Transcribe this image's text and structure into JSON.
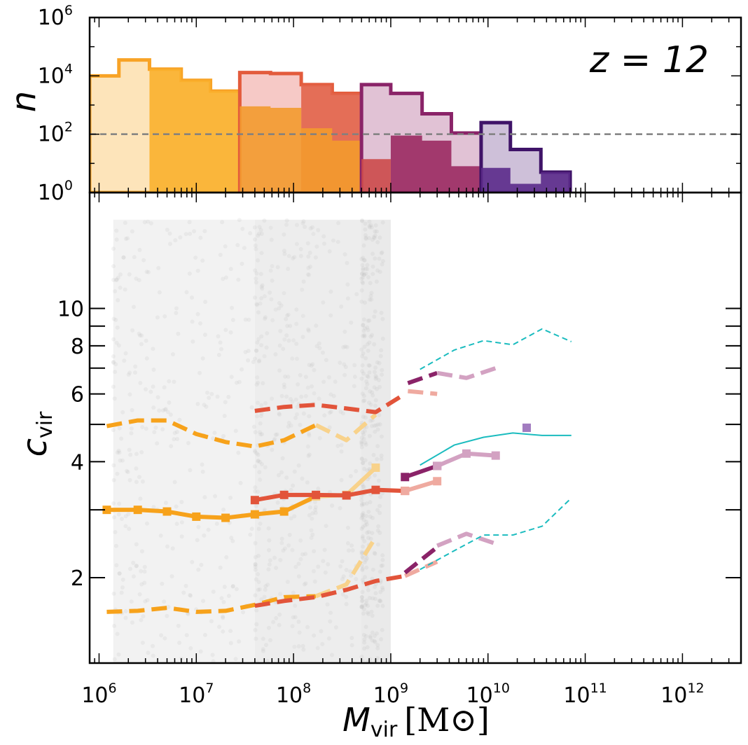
{
  "chart_data": [
    {
      "panel": "top",
      "type": "histogram",
      "annotation": "z = 12",
      "ylabel": "n",
      "yscale": "log",
      "ylim": [
        1,
        1000000
      ],
      "xscale": "log",
      "xlim": [
        800000,
        4000000000000
      ],
      "y_ticks": [
        {
          "value": 1,
          "base": "10",
          "exp": "0"
        },
        {
          "value": 100,
          "base": "10",
          "exp": "2"
        },
        {
          "value": 10000,
          "base": "10",
          "exp": "4"
        },
        {
          "value": 1000000,
          "base": "10",
          "exp": "6"
        }
      ],
      "reference_line": {
        "y": 100,
        "color": "#808080",
        "style": "dashed"
      },
      "series": [
        {
          "color": "#fde3b6",
          "style": "filled-light",
          "edges": [
            800000,
            1600000,
            3300000,
            7000000,
            14000000,
            28000000
          ],
          "values": [
            10000,
            35000,
            17000,
            7000,
            3000
          ]
        },
        {
          "color": "#f8a326",
          "style": "outline",
          "edges": [
            800000,
            1600000,
            3300000,
            7000000,
            14000000,
            28000000
          ],
          "values": [
            10000,
            35000,
            17000,
            7000,
            3000
          ]
        },
        {
          "color": "#fab02e",
          "style": "filled-solid",
          "edges": [
            3300000,
            7000000,
            14000000,
            28000000
          ],
          "values": [
            17000,
            7000,
            3000
          ]
        },
        {
          "color": "#f5c6c3",
          "style": "filled-light",
          "edges": [
            28000000,
            58000000,
            120000000,
            250000000,
            500000000
          ],
          "values": [
            13000,
            12000,
            5000,
            2500
          ]
        },
        {
          "color": "#e35b3c",
          "style": "outline",
          "edges": [
            28000000,
            58000000,
            120000000,
            250000000,
            500000000
          ],
          "values": [
            13000,
            12000,
            5000,
            2500
          ]
        },
        {
          "color": "#e2644a",
          "style": "filled-solid",
          "edges": [
            120000000,
            250000000,
            500000000
          ],
          "values": [
            5000,
            2500
          ]
        },
        {
          "color": "#f39a2e",
          "style": "filled-solid",
          "edges": [
            28000000,
            58000000,
            120000000,
            250000000,
            500000000
          ],
          "values": [
            900,
            800,
            160,
            60
          ]
        },
        {
          "color": "#dfbfd3",
          "style": "filled-light",
          "edges": [
            500000000,
            1000000000,
            2100000000,
            4200000000,
            8500000000
          ],
          "values": [
            5000,
            2500,
            500,
            110
          ]
        },
        {
          "color": "#8a2368",
          "style": "outline",
          "edges": [
            500000000,
            1000000000,
            2100000000,
            4200000000,
            8500000000
          ],
          "values": [
            5000,
            2500,
            500,
            110
          ]
        },
        {
          "color": "#9b2a62",
          "style": "filled-solid",
          "edges": [
            1000000000,
            2100000000,
            4200000000,
            8500000000
          ],
          "values": [
            90,
            60,
            8
          ]
        },
        {
          "color": "#cc4a4a",
          "style": "filled-solid",
          "edges": [
            500000000,
            1000000000
          ],
          "values": [
            14
          ]
        },
        {
          "color": "#cbbdd7",
          "style": "filled-light",
          "edges": [
            8500000000,
            17000000000,
            35000000000,
            70000000000
          ],
          "values": [
            250,
            30,
            5
          ]
        },
        {
          "color": "#3f1368",
          "style": "outline",
          "edges": [
            8500000000,
            17000000000,
            35000000000,
            70000000000
          ],
          "values": [
            250,
            30,
            5
          ]
        },
        {
          "color": "#5b2a8a",
          "style": "filled-solid",
          "edges": [
            8500000000,
            17000000000,
            35000000000,
            70000000000
          ],
          "values": [
            7,
            2,
            5
          ]
        }
      ]
    },
    {
      "panel": "bottom",
      "type": "line",
      "xlabel": {
        "symbol": "M",
        "sub": "vir",
        "unit": "[M⊙]"
      },
      "ylabel": {
        "symbol": "c",
        "sub": "vir"
      },
      "xscale": "log",
      "yscale": "log",
      "xlim": [
        800000,
        4000000000000
      ],
      "ylim": [
        1.2,
        20
      ],
      "x_ticks": [
        {
          "value": 1000000,
          "base": "10",
          "exp": "6"
        },
        {
          "value": 10000000,
          "base": "10",
          "exp": "7"
        },
        {
          "value": 100000000,
          "base": "10",
          "exp": "8"
        },
        {
          "value": 1000000000,
          "base": "10",
          "exp": "9"
        },
        {
          "value": 10000000000,
          "base": "10",
          "exp": "10"
        },
        {
          "value": 100000000000,
          "base": "10",
          "exp": "11"
        },
        {
          "value": 1000000000000,
          "base": "10",
          "exp": "12"
        }
      ],
      "y_ticks": [
        {
          "value": 2,
          "label": "2"
        },
        {
          "value": 4,
          "label": "4"
        },
        {
          "value": 6,
          "label": "6"
        },
        {
          "value": 8,
          "label": "8"
        },
        {
          "value": 10,
          "label": "10"
        }
      ],
      "scatter_background": {
        "color": "#d4d4d4",
        "bands": [
          [
            1400000,
            1000000000
          ],
          [
            40000000,
            1000000000
          ],
          [
            500000000,
            1000000000
          ]
        ],
        "y_range": [
          1.2,
          17
        ]
      },
      "series": [
        {
          "color": "#f7a21b",
          "style": "solid",
          "marker": "square",
          "width": 6,
          "x": [
            1200000,
            2500000,
            5000000,
            10000000,
            20000000,
            40000000,
            80000000,
            170000000
          ],
          "y": [
            3.0,
            3.0,
            2.97,
            2.88,
            2.86,
            2.92,
            2.97,
            3.25
          ]
        },
        {
          "color": "#f7a21b",
          "style": "dashed",
          "width": 6,
          "x": [
            1200000,
            2500000,
            5000000,
            10000000,
            20000000,
            40000000,
            80000000,
            170000000
          ],
          "y": [
            4.95,
            5.12,
            5.12,
            4.72,
            4.5,
            4.38,
            4.55,
            4.98
          ]
        },
        {
          "color": "#f7a21b",
          "style": "dashed",
          "width": 6,
          "x": [
            1200000,
            2500000,
            5000000,
            10000000,
            20000000,
            40000000,
            80000000,
            170000000
          ],
          "y": [
            1.63,
            1.64,
            1.67,
            1.63,
            1.64,
            1.7,
            1.78,
            1.79
          ]
        },
        {
          "color": "#f8d28b",
          "style": "solid",
          "marker": "square",
          "width": 6,
          "x": [
            170000000,
            350000000,
            700000000
          ],
          "y": [
            3.25,
            3.28,
            3.86
          ]
        },
        {
          "color": "#f8d28b",
          "style": "dashed",
          "width": 6,
          "x": [
            170000000,
            350000000,
            700000000
          ],
          "y": [
            4.98,
            4.55,
            5.3
          ]
        },
        {
          "color": "#f8d28b",
          "style": "dashed",
          "width": 6,
          "x": [
            170000000,
            350000000,
            700000000
          ],
          "y": [
            1.79,
            1.92,
            2.55
          ]
        },
        {
          "color": "#e2543a",
          "style": "solid",
          "marker": "square",
          "width": 6,
          "x": [
            40000000,
            80000000,
            170000000,
            350000000,
            700000000,
            1400000000
          ],
          "y": [
            3.18,
            3.28,
            3.28,
            3.27,
            3.38,
            3.36
          ]
        },
        {
          "color": "#e2543a",
          "style": "dashed",
          "width": 6,
          "x": [
            40000000,
            80000000,
            170000000,
            350000000,
            700000000,
            1400000000
          ],
          "y": [
            5.42,
            5.55,
            5.62,
            5.5,
            5.38,
            6.0
          ]
        },
        {
          "color": "#e2543a",
          "style": "dashed",
          "width": 6,
          "x": [
            40000000,
            80000000,
            170000000,
            350000000,
            700000000,
            1400000000
          ],
          "y": [
            1.69,
            1.74,
            1.78,
            1.86,
            1.96,
            2.02
          ]
        },
        {
          "color": "#efaaa0",
          "style": "solid",
          "marker": "square",
          "width": 6,
          "x": [
            1400000000,
            3000000000
          ],
          "y": [
            3.36,
            3.56
          ]
        },
        {
          "color": "#efaaa0",
          "style": "dashed",
          "width": 6,
          "x": [
            1500000000,
            3000000000
          ],
          "y": [
            6.1,
            6.0
          ]
        },
        {
          "color": "#efaaa0",
          "style": "dashed",
          "width": 6,
          "x": [
            1400000000,
            3000000000
          ],
          "y": [
            2.02,
            2.2
          ]
        },
        {
          "color": "#8a2368",
          "style": "solid",
          "marker": "square",
          "width": 6,
          "x": [
            1400000000,
            3000000000
          ],
          "y": [
            3.65,
            3.9
          ]
        },
        {
          "color": "#8a2368",
          "style": "dashed",
          "width": 6,
          "x": [
            1500000000,
            3000000000
          ],
          "y": [
            6.4,
            6.8
          ]
        },
        {
          "color": "#8a2368",
          "style": "dashed",
          "width": 6,
          "x": [
            1400000000,
            3000000000
          ],
          "y": [
            2.06,
            2.4
          ]
        },
        {
          "color": "#d3a2c2",
          "style": "solid",
          "marker": "square",
          "width": 6,
          "x": [
            3000000000,
            6000000000,
            12000000000
          ],
          "y": [
            3.9,
            4.2,
            4.15
          ]
        },
        {
          "color": "#d3a2c2",
          "style": "dashed",
          "width": 6,
          "x": [
            3000000000,
            6000000000,
            12000000000
          ],
          "y": [
            6.8,
            6.6,
            7.0
          ]
        },
        {
          "color": "#d3a2c2",
          "style": "dashed",
          "width": 6,
          "x": [
            3000000000,
            6000000000,
            12000000000
          ],
          "y": [
            2.42,
            2.6,
            2.45
          ]
        },
        {
          "color": "#a27cc0",
          "style": "none",
          "marker": "square",
          "width": 6,
          "x": [
            25000000000
          ],
          "y": [
            4.9
          ]
        },
        {
          "color": "#1bbcbf",
          "style": "solid",
          "width": 2,
          "x": [
            2000000000,
            4500000000,
            9000000000,
            18000000000,
            36000000000,
            72000000000
          ],
          "y": [
            3.92,
            4.42,
            4.63,
            4.75,
            4.68,
            4.68
          ]
        },
        {
          "color": "#1bbcbf",
          "style": "dashed",
          "width": 2,
          "x": [
            2000000000,
            4500000000,
            9000000000,
            18000000000,
            36000000000,
            72000000000
          ],
          "y": [
            6.95,
            7.8,
            8.25,
            8.05,
            8.85,
            8.2
          ]
        },
        {
          "color": "#1bbcbf",
          "style": "dashed",
          "width": 2,
          "x": [
            2000000000,
            4500000000,
            9000000000,
            18000000000,
            36000000000,
            72000000000
          ],
          "y": [
            2.1,
            2.35,
            2.58,
            2.58,
            2.72,
            3.22
          ]
        }
      ]
    }
  ]
}
